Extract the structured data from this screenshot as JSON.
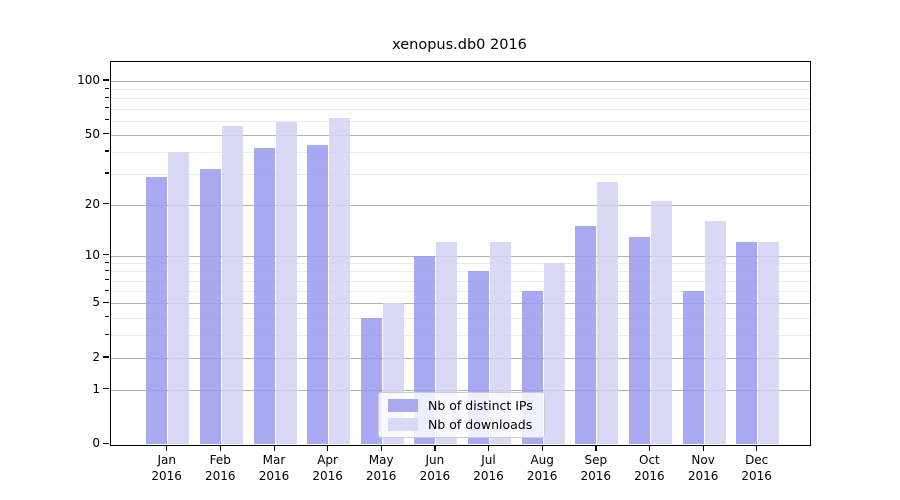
{
  "chart_data": {
    "type": "bar",
    "title": "xenopus.db0 2016",
    "categories": [
      "Jan",
      "Feb",
      "Mar",
      "Apr",
      "May",
      "Jun",
      "Jul",
      "Aug",
      "Sep",
      "Oct",
      "Nov",
      "Dec"
    ],
    "year_label": "2016",
    "x_tick_labels": [
      "Jan 2016",
      "Feb 2016",
      "Mar 2016",
      "Apr 2016",
      "May 2016",
      "Jun 2016",
      "Jul 2016",
      "Aug 2016",
      "Sep 2016",
      "Oct 2016",
      "Nov 2016",
      "Dec 2016"
    ],
    "series": [
      {
        "name": "Nb of distinct IPs",
        "color_on_white": "#a9a9f0",
        "color_rgba": "rgba(154,154,238,0.85)",
        "values": [
          29,
          32,
          42,
          44,
          4,
          10,
          8,
          6,
          15,
          13,
          6,
          12
        ]
      },
      {
        "name": "Nb of downloads",
        "color_on_white": "#d9d9f7",
        "color_rgba": "rgba(210,210,245,0.85)",
        "values": [
          40,
          56,
          59,
          62,
          5,
          12,
          12,
          9,
          27,
          21,
          16,
          12
        ]
      }
    ],
    "y_axis": {
      "scale": "log-like (log10(1+x)), zero shown at baseline",
      "tick_labels": [
        100,
        50,
        20,
        10,
        5,
        2,
        1,
        0
      ],
      "major_gridline_values": [
        1,
        2,
        5,
        10,
        20,
        50,
        100
      ],
      "minor_gridline_values": [
        3,
        4,
        6,
        7,
        8,
        9,
        30,
        40,
        60,
        70,
        80,
        90
      ],
      "ylim": [
        0,
        128
      ],
      "grid": "on"
    },
    "legend": {
      "position": "lower center",
      "entries": [
        "Nb of distinct IPs",
        "Nb of downloads"
      ]
    }
  }
}
